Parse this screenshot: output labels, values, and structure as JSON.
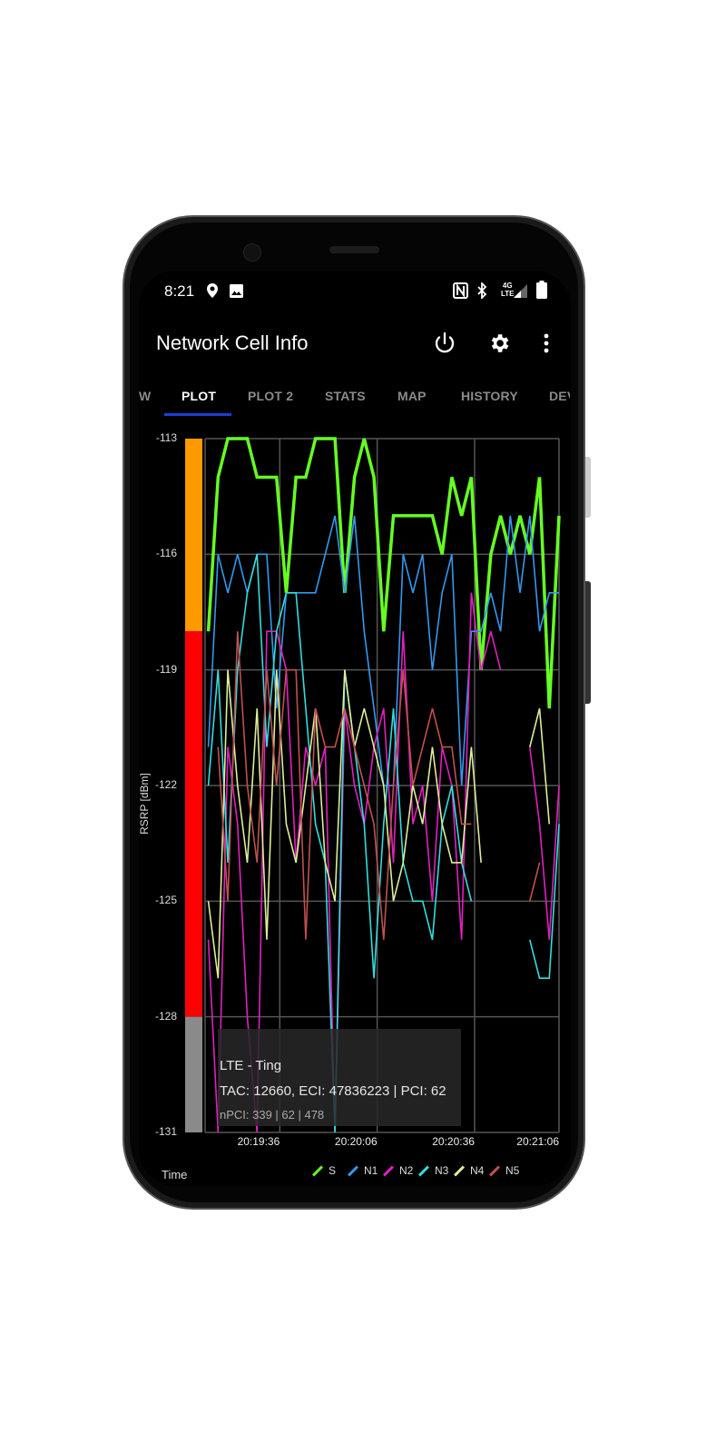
{
  "status_bar": {
    "time": "8:21",
    "left_icons": [
      "location-pin-icon",
      "image-icon"
    ],
    "right_icons": [
      "nfc-icon",
      "bluetooth-icon",
      "4g-lte-signal-icon",
      "battery-icon"
    ],
    "network_label_top": "4G",
    "network_label_bottom": "LTE"
  },
  "app_bar": {
    "title": "Network Cell Info",
    "actions": [
      "power-icon",
      "gear-icon",
      "more-vert-icon"
    ]
  },
  "tabs": [
    {
      "label": "W",
      "active": false
    },
    {
      "label": "PLOT",
      "active": true
    },
    {
      "label": "PLOT 2",
      "active": false
    },
    {
      "label": "STATS",
      "active": false
    },
    {
      "label": "MAP",
      "active": false
    },
    {
      "label": "HISTORY",
      "active": false
    },
    {
      "label": "DEV",
      "active": false
    }
  ],
  "colors": {
    "tab_indicator": "#1a3fd6",
    "band_good": "#ff9900",
    "band_fair": "#ff0000",
    "band_poor": "#8a8a8a"
  },
  "info_box": {
    "line1": "LTE - Ting",
    "line2": "TAC: 12660, ECI: 47836223 | PCI: 62",
    "line3": "nPCI: 339 | 62 | 478"
  },
  "x_axis_label": "Time",
  "chart_data": {
    "type": "line",
    "ylabel": "RSRP [dBm]",
    "xlabel": "Time",
    "ylim": [
      -131,
      -113
    ],
    "yticks": [
      -113,
      -116,
      -119,
      -122,
      -125,
      -128,
      -131
    ],
    "xlim": [
      "20:19:13",
      "20:21:02"
    ],
    "xticks": [
      "20:19:36",
      "20:20:06",
      "20:20:36",
      "20:21:06"
    ],
    "grid": true,
    "legend": "bottom-right",
    "quality_bands": [
      {
        "from": -118,
        "to": -113,
        "color": "#ff9900"
      },
      {
        "from": -128,
        "to": -118,
        "color": "#ff0000"
      },
      {
        "from": -131,
        "to": -128,
        "color": "#8a8a8a"
      }
    ],
    "x": [
      "20:19:14",
      "20:19:17",
      "20:19:20",
      "20:19:23",
      "20:19:26",
      "20:19:29",
      "20:19:32",
      "20:19:35",
      "20:19:38",
      "20:19:41",
      "20:19:44",
      "20:19:47",
      "20:19:50",
      "20:19:53",
      "20:19:56",
      "20:19:59",
      "20:20:02",
      "20:20:05",
      "20:20:08",
      "20:20:11",
      "20:20:14",
      "20:20:17",
      "20:20:20",
      "20:20:23",
      "20:20:26",
      "20:20:29",
      "20:20:32",
      "20:20:35",
      "20:20:38",
      "20:20:41",
      "20:20:44",
      "20:20:47",
      "20:20:50",
      "20:20:53",
      "20:20:56",
      "20:20:59",
      "20:21:02"
    ],
    "series": [
      {
        "name": "S",
        "color": "#66ff22",
        "values": [
          -118,
          -114,
          -113,
          -113,
          -113,
          -114,
          -114,
          -114,
          -117,
          -114,
          -114,
          -113,
          -113,
          -113,
          -117,
          -114,
          -113,
          -114,
          -118,
          -115,
          -115,
          -115,
          -115,
          -115,
          -116,
          -114,
          -115,
          -114,
          -119,
          -116,
          -115,
          -116,
          -115,
          -116,
          -114,
          -120,
          -115
        ]
      },
      {
        "name": "N1",
        "color": "#3399ee",
        "values": [
          -121,
          -116,
          -117,
          -116,
          -117,
          -116,
          -116,
          -120,
          -117,
          -117,
          -117,
          -117,
          -116,
          -115,
          -117,
          -115,
          -118,
          -120,
          -122,
          -122,
          -116,
          -117,
          -116,
          -119,
          -117,
          -116,
          -122,
          -118,
          -118,
          -117,
          -118,
          -115,
          -117,
          -115,
          -118,
          -117,
          -117
        ]
      },
      {
        "name": "N2",
        "color": "#e020c0",
        "values": [
          -126,
          -131,
          -121,
          -123,
          -128,
          -131,
          -118,
          -118,
          -119,
          -124,
          -121,
          -122,
          -121,
          -131,
          -120,
          -122,
          -123,
          -121,
          -120,
          -124,
          -118,
          -123,
          -122,
          -125,
          -121,
          -122,
          -126,
          -117,
          -119,
          -118,
          -119,
          null,
          null,
          -121,
          -123,
          -126,
          -122
        ]
      },
      {
        "name": "N3",
        "color": "#33dddd",
        "values": [
          -122,
          -119,
          -124,
          -119,
          -117,
          -116,
          -121,
          -118,
          -117,
          -117,
          -120,
          -123,
          -124,
          -131,
          -119,
          -121,
          -123,
          -127,
          -123,
          -120,
          -124,
          -125,
          -125,
          -126,
          -123,
          -122,
          -124,
          -125,
          null,
          null,
          null,
          null,
          null,
          -126,
          -127,
          -127,
          -123
        ]
      },
      {
        "name": "N4",
        "color": "#ddee99",
        "values": [
          -125,
          -127,
          -119,
          -122,
          -124,
          -120,
          -126,
          -119,
          -123,
          -124,
          -122,
          -120,
          -124,
          -125,
          -119,
          -121,
          -120,
          -121,
          -122,
          -125,
          -124,
          -122,
          -123,
          -121,
          -123,
          -124,
          -124,
          -121,
          -124,
          null,
          null,
          null,
          null,
          -121,
          -120,
          -123,
          null
        ]
      },
      {
        "name": "N5",
        "color": "#c05050",
        "values": [
          null,
          -121,
          -125,
          -118,
          -122,
          -124,
          -119,
          -122,
          -119,
          -119,
          -126,
          -120,
          -121,
          -121,
          -120,
          -121,
          -122,
          -123,
          -126,
          -122,
          -119,
          -122,
          -121,
          -120,
          -121,
          -121,
          -123,
          -123,
          null,
          null,
          null,
          null,
          null,
          -125,
          -124,
          null,
          null
        ]
      }
    ]
  }
}
